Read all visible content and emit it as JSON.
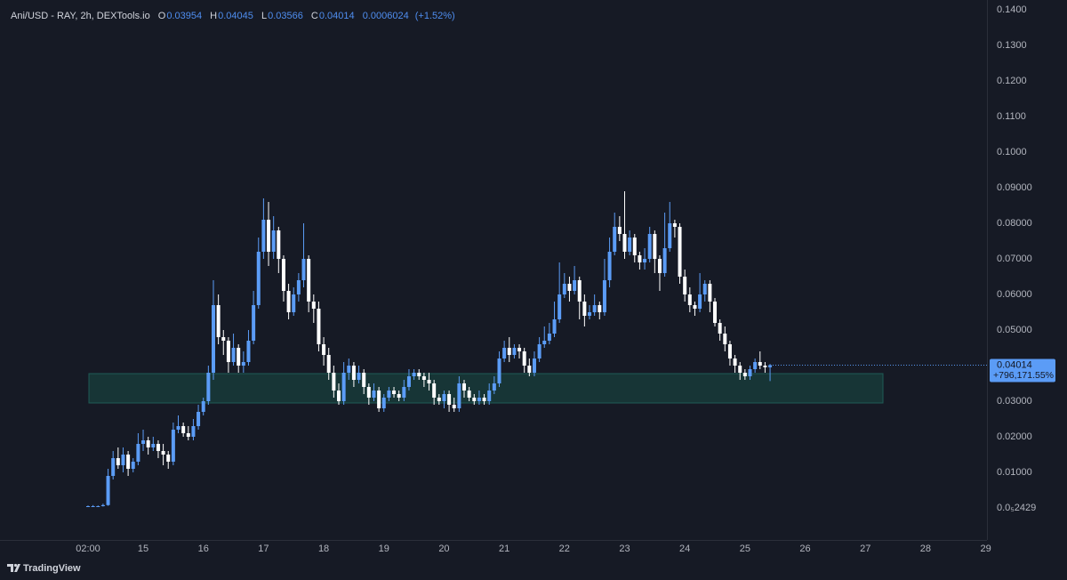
{
  "chart_data": {
    "type": "candlestick",
    "symbol": "Ani/USD - RAY, 2h, DEXTools.io",
    "ohlc_labels": [
      "O",
      "H",
      "L",
      "C"
    ],
    "change": 0.0006024,
    "change_percent": {
      "value": 1.52,
      "label": "(+1.52%)"
    },
    "last_change_percent": {
      "value": 796171.55,
      "label": "+796,171.55%"
    },
    "watermark": "TradingView",
    "up_color": "#5b9cf6",
    "down_color": "#ffffff",
    "grid": false,
    "xlim": [
      -33.1,
      360.5
    ],
    "xticks": [
      {
        "value": 2,
        "label": "02:00"
      },
      {
        "value": 24,
        "label": "15"
      },
      {
        "value": 48,
        "label": "16"
      },
      {
        "value": 72,
        "label": "17"
      },
      {
        "value": 96,
        "label": "18"
      },
      {
        "value": 120,
        "label": "19"
      },
      {
        "value": 144,
        "label": "20"
      },
      {
        "value": 168,
        "label": "21"
      },
      {
        "value": 192,
        "label": "22"
      },
      {
        "value": 216,
        "label": "23"
      },
      {
        "value": 240,
        "label": "24"
      },
      {
        "value": 264,
        "label": "25"
      },
      {
        "value": 288,
        "label": "26"
      },
      {
        "value": 312,
        "label": "27"
      },
      {
        "value": 336,
        "label": "28"
      },
      {
        "value": 360,
        "label": "29"
      }
    ],
    "ylim": [
      -0.009,
      0.14275
    ],
    "yticks": [
      {
        "value": 0.14,
        "label": "0.1400"
      },
      {
        "value": 0.13,
        "label": "0.1300"
      },
      {
        "value": 0.12,
        "label": "0.1200"
      },
      {
        "value": 0.11,
        "label": "0.1100"
      },
      {
        "value": 0.1,
        "label": "0.1000"
      },
      {
        "value": 0.09,
        "label": "0.09000"
      },
      {
        "value": 0.08,
        "label": "0.08000"
      },
      {
        "value": 0.07,
        "label": "0.07000"
      },
      {
        "value": 0.06,
        "label": "0.06000"
      },
      {
        "value": 0.05,
        "label": "0.05000"
      },
      {
        "value": 0.04,
        "label": "0.04000"
      },
      {
        "value": 0.03,
        "label": "0.03000"
      },
      {
        "value": 0.02,
        "label": "0.02000"
      },
      {
        "value": 0.01,
        "label": "0.01000"
      },
      {
        "value": 2.429e-06,
        "label": "0.0₅2429"
      }
    ],
    "x": [
      2,
      4,
      6,
      8,
      10,
      12,
      14,
      16,
      18,
      20,
      22,
      24,
      26,
      28,
      30,
      32,
      34,
      36,
      38,
      40,
      42,
      44,
      46,
      48,
      50,
      52,
      54,
      56,
      58,
      60,
      62,
      64,
      66,
      68,
      70,
      72,
      74,
      76,
      78,
      80,
      82,
      84,
      86,
      88,
      90,
      92,
      94,
      96,
      98,
      100,
      102,
      104,
      106,
      108,
      110,
      112,
      114,
      116,
      118,
      120,
      122,
      124,
      126,
      128,
      130,
      132,
      134,
      136,
      138,
      140,
      142,
      144,
      146,
      148,
      150,
      152,
      154,
      156,
      158,
      160,
      162,
      164,
      166,
      168,
      170,
      172,
      174,
      176,
      178,
      180,
      182,
      184,
      186,
      188,
      190,
      192,
      194,
      196,
      198,
      200,
      202,
      204,
      206,
      208,
      210,
      212,
      214,
      216,
      218,
      220,
      222,
      224,
      226,
      228,
      230,
      232,
      234,
      236,
      238,
      240,
      242,
      244,
      246,
      248,
      250,
      252,
      254,
      256,
      258,
      260,
      262,
      264,
      266,
      268,
      270,
      272,
      274
    ],
    "open": [
      0.0004,
      0.0005,
      0.0005,
      0.0005,
      0.0008,
      0.009,
      0.014,
      0.012,
      0.015,
      0.011,
      0.013,
      0.018,
      0.019,
      0.017,
      0.018,
      0.016,
      0.015,
      0.013,
      0.022,
      0.023,
      0.021,
      0.02,
      0.023,
      0.027,
      0.03,
      0.038,
      0.057,
      0.048,
      0.047,
      0.041,
      0.045,
      0.04,
      0.041,
      0.047,
      0.057,
      0.072,
      0.081,
      0.072,
      0.078,
      0.07,
      0.061,
      0.055,
      0.06,
      0.064,
      0.07,
      0.058,
      0.056,
      0.046,
      0.043,
      0.038,
      0.033,
      0.03,
      0.038,
      0.04,
      0.036,
      0.038,
      0.034,
      0.031,
      0.033,
      0.028,
      0.031,
      0.033,
      0.032,
      0.031,
      0.034,
      0.037,
      0.038,
      0.037,
      0.036,
      0.035,
      0.031,
      0.03,
      0.032,
      0.029,
      0.028,
      0.035,
      0.033,
      0.031,
      0.03,
      0.031,
      0.03,
      0.033,
      0.035,
      0.042,
      0.045,
      0.043,
      0.045,
      0.044,
      0.04,
      0.038,
      0.042,
      0.046,
      0.047,
      0.049,
      0.053,
      0.06,
      0.063,
      0.061,
      0.064,
      0.058,
      0.054,
      0.055,
      0.057,
      0.055,
      0.064,
      0.072,
      0.079,
      0.077,
      0.072,
      0.076,
      0.071,
      0.069,
      0.07,
      0.077,
      0.07,
      0.066,
      0.073,
      0.08,
      0.079,
      0.065,
      0.06,
      0.057,
      0.056,
      0.06,
      0.063,
      0.058,
      0.052,
      0.049,
      0.046,
      0.042,
      0.04,
      0.038,
      0.037,
      0.039,
      0.041,
      0.04,
      0.03954
    ],
    "high": [
      0.0007,
      0.0008,
      0.0007,
      0.0012,
      0.011,
      0.016,
      0.017,
      0.017,
      0.016,
      0.014,
      0.021,
      0.022,
      0.02,
      0.02,
      0.019,
      0.018,
      0.016,
      0.024,
      0.026,
      0.024,
      0.023,
      0.025,
      0.029,
      0.031,
      0.04,
      0.064,
      0.06,
      0.05,
      0.048,
      0.049,
      0.046,
      0.044,
      0.05,
      0.061,
      0.076,
      0.087,
      0.086,
      0.082,
      0.079,
      0.071,
      0.063,
      0.062,
      0.066,
      0.08,
      0.071,
      0.06,
      0.058,
      0.048,
      0.045,
      0.04,
      0.035,
      0.041,
      0.042,
      0.041,
      0.04,
      0.039,
      0.035,
      0.035,
      0.034,
      0.032,
      0.034,
      0.034,
      0.033,
      0.036,
      0.039,
      0.039,
      0.039,
      0.038,
      0.038,
      0.036,
      0.032,
      0.033,
      0.033,
      0.031,
      0.037,
      0.036,
      0.034,
      0.032,
      0.033,
      0.032,
      0.035,
      0.037,
      0.044,
      0.047,
      0.048,
      0.046,
      0.046,
      0.045,
      0.042,
      0.044,
      0.048,
      0.051,
      0.052,
      0.058,
      0.069,
      0.066,
      0.065,
      0.068,
      0.065,
      0.06,
      0.057,
      0.06,
      0.058,
      0.07,
      0.076,
      0.083,
      0.082,
      0.089,
      0.078,
      0.077,
      0.072,
      0.073,
      0.079,
      0.078,
      0.071,
      0.083,
      0.086,
      0.081,
      0.08,
      0.067,
      0.062,
      0.058,
      0.066,
      0.064,
      0.064,
      0.059,
      0.053,
      0.051,
      0.047,
      0.043,
      0.041,
      0.039,
      0.04,
      0.042,
      0.044,
      0.041,
      0.04045
    ],
    "low": [
      0.0003,
      0.0003,
      0.0004,
      0.0004,
      0.0006,
      0.008,
      0.011,
      0.01,
      0.009,
      0.01,
      0.012,
      0.016,
      0.015,
      0.016,
      0.014,
      0.012,
      0.011,
      0.012,
      0.021,
      0.02,
      0.019,
      0.019,
      0.022,
      0.026,
      0.029,
      0.036,
      0.046,
      0.043,
      0.038,
      0.04,
      0.038,
      0.038,
      0.04,
      0.046,
      0.056,
      0.07,
      0.068,
      0.07,
      0.066,
      0.058,
      0.053,
      0.054,
      0.058,
      0.062,
      0.055,
      0.052,
      0.044,
      0.04,
      0.036,
      0.031,
      0.029,
      0.029,
      0.036,
      0.034,
      0.035,
      0.032,
      0.029,
      0.03,
      0.027,
      0.027,
      0.03,
      0.031,
      0.03,
      0.03,
      0.033,
      0.036,
      0.036,
      0.034,
      0.033,
      0.029,
      0.029,
      0.028,
      0.027,
      0.027,
      0.027,
      0.031,
      0.03,
      0.029,
      0.029,
      0.029,
      0.029,
      0.032,
      0.034,
      0.041,
      0.041,
      0.042,
      0.042,
      0.038,
      0.037,
      0.037,
      0.041,
      0.045,
      0.046,
      0.048,
      0.052,
      0.059,
      0.058,
      0.06,
      0.053,
      0.051,
      0.053,
      0.054,
      0.053,
      0.054,
      0.062,
      0.071,
      0.075,
      0.07,
      0.071,
      0.069,
      0.067,
      0.067,
      0.069,
      0.066,
      0.061,
      0.065,
      0.072,
      0.076,
      0.063,
      0.058,
      0.055,
      0.054,
      0.055,
      0.058,
      0.055,
      0.051,
      0.047,
      0.044,
      0.04,
      0.038,
      0.036,
      0.036,
      0.036,
      0.038,
      0.039,
      0.038,
      0.03566
    ],
    "close": [
      0.0005,
      0.0005,
      0.0005,
      0.0008,
      0.009,
      0.014,
      0.012,
      0.015,
      0.011,
      0.013,
      0.018,
      0.019,
      0.017,
      0.018,
      0.016,
      0.015,
      0.013,
      0.022,
      0.023,
      0.021,
      0.02,
      0.023,
      0.027,
      0.03,
      0.038,
      0.057,
      0.048,
      0.047,
      0.041,
      0.045,
      0.04,
      0.041,
      0.047,
      0.057,
      0.072,
      0.081,
      0.072,
      0.078,
      0.07,
      0.061,
      0.055,
      0.06,
      0.064,
      0.07,
      0.058,
      0.056,
      0.046,
      0.043,
      0.038,
      0.033,
      0.03,
      0.038,
      0.04,
      0.036,
      0.038,
      0.034,
      0.031,
      0.033,
      0.028,
      0.031,
      0.033,
      0.032,
      0.031,
      0.034,
      0.037,
      0.038,
      0.037,
      0.036,
      0.035,
      0.031,
      0.03,
      0.032,
      0.029,
      0.028,
      0.035,
      0.033,
      0.031,
      0.03,
      0.031,
      0.03,
      0.033,
      0.035,
      0.042,
      0.045,
      0.043,
      0.045,
      0.044,
      0.04,
      0.038,
      0.042,
      0.046,
      0.047,
      0.049,
      0.053,
      0.06,
      0.063,
      0.061,
      0.064,
      0.058,
      0.054,
      0.055,
      0.057,
      0.055,
      0.064,
      0.072,
      0.079,
      0.077,
      0.072,
      0.076,
      0.071,
      0.069,
      0.07,
      0.077,
      0.07,
      0.066,
      0.073,
      0.08,
      0.079,
      0.065,
      0.06,
      0.057,
      0.056,
      0.06,
      0.063,
      0.058,
      0.052,
      0.049,
      0.046,
      0.042,
      0.04,
      0.038,
      0.037,
      0.039,
      0.041,
      0.04,
      0.03954,
      0.04014
    ]
  }
}
